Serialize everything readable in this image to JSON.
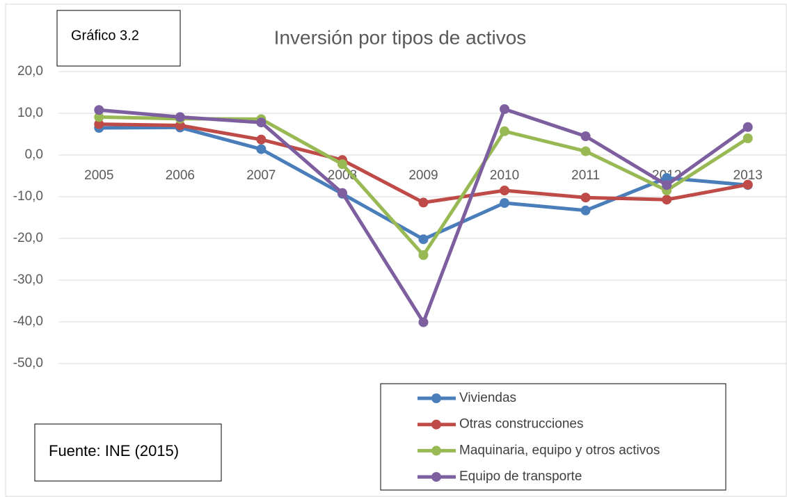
{
  "chart_data": {
    "type": "line",
    "title": "Inversión por tipos de activos",
    "annotations": [
      "Gráfico 3.2",
      "Fuente: INE (2015)"
    ],
    "categories": [
      "2005",
      "2006",
      "2007",
      "2008",
      "2009",
      "2010",
      "2011",
      "2012",
      "2013"
    ],
    "series": [
      {
        "name": "Viviendas",
        "color": "#4a7ebb",
        "values": [
          6.5,
          6.6,
          1.4,
          -9.3,
          -20.2,
          -11.5,
          -13.3,
          -5.5,
          -7.2
        ]
      },
      {
        "name": "Otras construcciones",
        "color": "#be4b48",
        "values": [
          7.4,
          7.1,
          3.7,
          -1.2,
          -11.4,
          -8.5,
          -10.2,
          -10.7,
          -7.1
        ]
      },
      {
        "name": "Maquinaria, equipo y otros activos",
        "color": "#98b954",
        "values": [
          9.1,
          8.7,
          8.6,
          -2.2,
          -24.0,
          5.7,
          0.9,
          -8.5,
          4.0
        ]
      },
      {
        "name": "Equipo de transporte",
        "color": "#7d5fa0",
        "values": [
          10.8,
          9.1,
          7.8,
          -9.1,
          -40.1,
          11.0,
          4.5,
          -7.2,
          6.7
        ]
      }
    ],
    "ylim": [
      -50,
      20
    ],
    "yticks": [
      {
        "value": -50,
        "label": "-50,0"
      },
      {
        "value": -40,
        "label": "-40,0"
      },
      {
        "value": -30,
        "label": "-30,0"
      },
      {
        "value": -20,
        "label": "-20,0"
      },
      {
        "value": -10,
        "label": "-10,0"
      },
      {
        "value": 0,
        "label": "0,0"
      },
      {
        "value": 10,
        "label": "10,0"
      },
      {
        "value": 20,
        "label": "20,0"
      }
    ],
    "grid": true
  }
}
